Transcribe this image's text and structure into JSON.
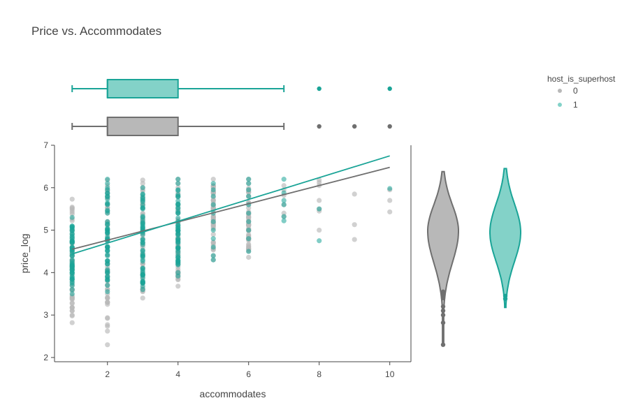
{
  "chart_data": {
    "type": "scatter",
    "title": "Price vs. Accommodates",
    "xlabel": "accommodates",
    "ylabel": "price_log",
    "xlim": [
      0.5,
      10.6
    ],
    "ylim": [
      1.9,
      7.0
    ],
    "x_ticks": [
      2,
      4,
      6,
      8,
      10
    ],
    "y_ticks": [
      2,
      3,
      4,
      5,
      6,
      7
    ],
    "legend": {
      "title": "host_is_superhost",
      "position": "top-right"
    },
    "colors": {
      "0": "#7a7a7a",
      "1": "#1aa497",
      "0_fill": "#b8b8b8",
      "1_fill": "#83d2c8"
    },
    "series": [
      {
        "name": "0",
        "points": {
          "1": [
            5.73,
            5.52,
            5.38,
            5.22,
            5.0,
            4.9,
            4.8,
            4.6,
            4.5,
            4.4,
            4.3,
            4.2,
            4.1,
            3.95,
            3.8,
            3.6,
            3.4,
            3.18,
            3.1,
            3.0,
            2.98,
            2.82
          ],
          "2": [
            6.18,
            6.05,
            5.95,
            5.8,
            5.6,
            5.4,
            5.2,
            5.0,
            4.8,
            4.6,
            4.4,
            4.2,
            4.0,
            3.8,
            3.6,
            3.5,
            3.4,
            2.3
          ],
          "3": [
            6.18,
            6.1,
            5.95,
            5.8,
            5.6,
            5.4,
            5.2,
            5.0,
            4.8,
            4.6,
            4.4,
            4.2,
            4.0,
            3.75,
            3.55,
            3.4
          ],
          "4": [
            6.2,
            6.1,
            6.0,
            5.8,
            5.6,
            5.4,
            5.2,
            5.0,
            4.8,
            4.6,
            4.4,
            4.2,
            4.0,
            3.9,
            3.68
          ],
          "5": [
            6.2,
            6.05,
            5.9,
            5.7,
            5.5,
            5.3,
            5.1,
            4.9,
            4.7,
            4.55,
            4.4,
            4.3
          ],
          "6": [
            6.2,
            6.1,
            5.95,
            5.8,
            5.6,
            5.4,
            5.2,
            5.0,
            4.8,
            4.6,
            4.5,
            4.36
          ],
          "7": [
            6.05,
            5.95,
            5.82,
            5.6,
            5.4,
            5.32
          ],
          "8": [
            6.18,
            6.12,
            6.05,
            5.7,
            5.5,
            5.45,
            5.0
          ],
          "9": [
            5.85,
            5.13,
            4.78
          ],
          "10": [
            5.95,
            5.7,
            5.43
          ]
        },
        "trend": {
          "x": [
            1,
            10
          ],
          "y": [
            4.55,
            6.48
          ]
        },
        "box": {
          "min": 1,
          "q1": 2,
          "median": 2,
          "q3": 4,
          "max": 7,
          "outliers": [
            8,
            9,
            10
          ]
        },
        "violin": {
          "min": 2.3,
          "max": 6.38,
          "median": 4.98,
          "outliers": [
            3.55,
            3.48,
            3.4,
            3.2,
            3.1,
            3.0,
            2.82,
            2.3
          ]
        }
      },
      {
        "name": "1",
        "points": {
          "1": [
            5.3,
            5.0,
            4.9,
            4.8,
            4.7,
            4.6,
            4.5,
            4.4,
            4.3,
            4.2,
            4.1,
            4.0,
            3.9,
            3.75,
            3.6,
            3.5
          ],
          "2": [
            6.2,
            6.1,
            5.95,
            5.8,
            5.6,
            5.4,
            5.2,
            5.0,
            4.8,
            4.6,
            4.4,
            4.2,
            4.0,
            3.85,
            3.7,
            3.55
          ],
          "3": [
            6.0,
            5.85,
            5.7,
            5.5,
            5.3,
            5.1,
            4.9,
            4.7,
            4.5,
            4.3,
            4.1,
            3.95,
            3.8,
            3.68,
            3.6
          ],
          "4": [
            6.2,
            6.1,
            5.95,
            5.8,
            5.6,
            5.4,
            5.2,
            5.0,
            4.8,
            4.6,
            4.4,
            4.2,
            4.0,
            3.92
          ],
          "5": [
            6.1,
            5.95,
            5.8,
            5.6,
            5.4,
            5.2,
            5.0,
            4.8,
            4.6,
            4.4,
            4.3
          ],
          "6": [
            6.2,
            6.1,
            5.95,
            5.8,
            5.6,
            5.4,
            5.2,
            5.0,
            4.8,
            4.5
          ],
          "7": [
            6.2,
            5.88,
            5.7,
            5.6,
            5.32,
            5.22
          ],
          "8": [
            5.5,
            4.75
          ],
          "10": [
            5.98
          ]
        },
        "trend": {
          "x": [
            1,
            10
          ],
          "y": [
            4.44,
            6.75
          ]
        },
        "box": {
          "min": 1,
          "q1": 2,
          "median": 2,
          "q3": 4,
          "max": 7,
          "outliers": [
            8,
            10
          ]
        },
        "violin": {
          "min": 3.18,
          "max": 6.45,
          "median": 4.95,
          "outliers": [
            3.45,
            3.38
          ]
        }
      }
    ]
  }
}
